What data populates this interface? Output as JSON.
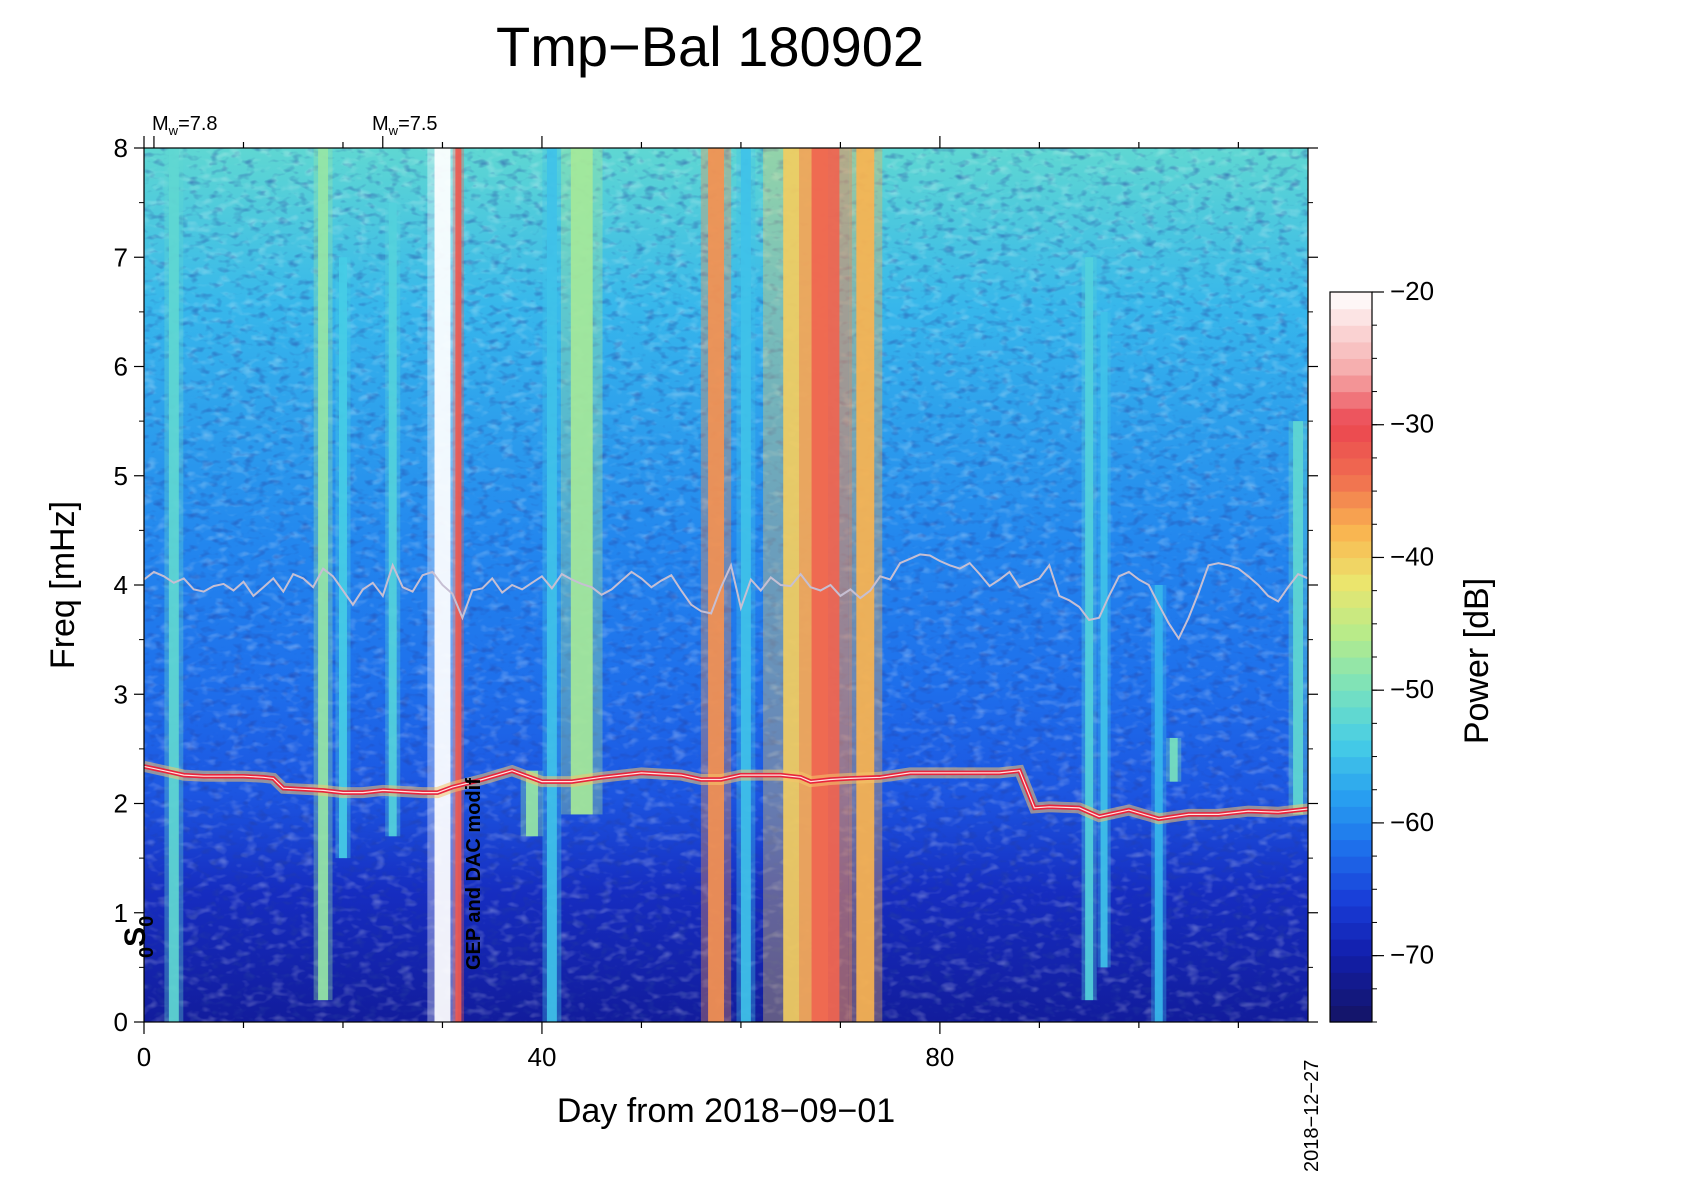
{
  "title": "Tmp−Bal 180902",
  "chart_data": {
    "type": "heatmap",
    "title": "Tmp−Bal 180902",
    "xlabel": "Day from 2018−09−01",
    "ylabel": "Freq [mHz]",
    "xlim": [
      0,
      117
    ],
    "ylim": [
      0,
      8
    ],
    "x_ticks": [
      "0",
      "40",
      "80"
    ],
    "x_tick_values": [
      0,
      40,
      80
    ],
    "x_end_label": "2018−12−27",
    "y_ticks": [
      "0",
      "1",
      "2",
      "3",
      "4",
      "5",
      "6",
      "7",
      "8"
    ],
    "y_tick_values": [
      0,
      1,
      2,
      3,
      4,
      5,
      6,
      7,
      8
    ],
    "colorbar": {
      "label": "Power [dB]",
      "range": [
        -75,
        -20
      ],
      "ticks": [
        "−20",
        "−30",
        "−40",
        "−50",
        "−60",
        "−70"
      ],
      "tick_values": [
        -20,
        -30,
        -40,
        -50,
        -60,
        -70
      ]
    },
    "events": [
      {
        "day": 1,
        "label_main": "M",
        "label_sub": "w",
        "label_rest": "=7.8"
      },
      {
        "day": 24,
        "label_main": "M",
        "label_sub": "w",
        "label_rest": "=7.5"
      }
    ],
    "annotations": {
      "mode": {
        "pre": "0",
        "main": "S",
        "post": "0",
        "freq_mHz": 0.814
      },
      "note": {
        "text": "GEP and DAC modif",
        "day": 33
      }
    },
    "strips": [
      {
        "day": 3,
        "width_days": 1.0,
        "fmin": 0.0,
        "fmax": 8.0,
        "level": -52
      },
      {
        "day": 18,
        "width_days": 1.0,
        "fmin": 0.2,
        "fmax": 8.0,
        "level": -48
      },
      {
        "day": 20,
        "width_days": 0.8,
        "fmin": 1.5,
        "fmax": 7.0,
        "level": -54
      },
      {
        "day": 25,
        "width_days": 0.8,
        "fmin": 1.7,
        "fmax": 7.5,
        "level": -53
      },
      {
        "day": 30,
        "width_days": 1.6,
        "fmin": 0.0,
        "fmax": 8.0,
        "level": -20
      },
      {
        "day": 31.6,
        "width_days": 0.6,
        "fmin": 0.0,
        "fmax": 8.0,
        "level": -32
      },
      {
        "day": 39,
        "width_days": 1.2,
        "fmin": 1.7,
        "fmax": 2.3,
        "level": -48
      },
      {
        "day": 41,
        "width_days": 1.0,
        "fmin": 0.0,
        "fmax": 8.0,
        "level": -55
      },
      {
        "day": 44,
        "width_days": 2.2,
        "fmin": 1.9,
        "fmax": 8.0,
        "level": -47
      },
      {
        "day": 57.5,
        "width_days": 1.6,
        "fmin": 0.0,
        "fmax": 8.0,
        "level": -36
      },
      {
        "day": 60.5,
        "width_days": 1.0,
        "fmin": 0.0,
        "fmax": 8.0,
        "level": -55
      },
      {
        "day": 66.5,
        "width_days": 4.5,
        "fmin": 0.0,
        "fmax": 8.0,
        "level": -40
      },
      {
        "day": 68.5,
        "width_days": 2.8,
        "fmin": 0.0,
        "fmax": 8.0,
        "level": -33
      },
      {
        "day": 72.5,
        "width_days": 1.8,
        "fmin": 0.0,
        "fmax": 8.0,
        "level": -38
      },
      {
        "day": 95,
        "width_days": 0.8,
        "fmin": 0.2,
        "fmax": 7.0,
        "level": -53
      },
      {
        "day": 96.5,
        "width_days": 0.7,
        "fmin": 0.5,
        "fmax": 6.5,
        "level": -55
      },
      {
        "day": 102,
        "width_days": 0.8,
        "fmin": 0.0,
        "fmax": 4.0,
        "level": -56
      },
      {
        "day": 103.5,
        "width_days": 0.8,
        "fmin": 2.2,
        "fmax": 2.6,
        "level": -50
      },
      {
        "day": 116,
        "width_days": 1.0,
        "fmin": 1.9,
        "fmax": 5.5,
        "level": -52
      }
    ],
    "series": [
      {
        "name": "red band",
        "color": "#e8243c",
        "x": [
          0,
          2,
          4,
          6,
          8,
          10,
          12,
          13,
          14,
          16,
          18,
          20,
          22,
          24,
          26,
          28,
          29.5,
          31,
          34,
          37,
          40,
          43,
          46,
          50,
          54,
          56,
          58,
          60,
          62,
          64,
          66,
          67,
          69,
          71,
          74,
          77,
          80,
          83,
          86,
          88,
          89.5,
          91,
          94,
          96,
          99,
          102,
          105,
          108,
          111,
          114,
          117
        ],
        "y": [
          2.34,
          2.3,
          2.26,
          2.25,
          2.25,
          2.25,
          2.24,
          2.23,
          2.14,
          2.13,
          2.12,
          2.1,
          2.1,
          2.12,
          2.11,
          2.1,
          2.1,
          2.15,
          2.22,
          2.3,
          2.2,
          2.2,
          2.24,
          2.28,
          2.26,
          2.22,
          2.22,
          2.26,
          2.26,
          2.26,
          2.24,
          2.2,
          2.22,
          2.23,
          2.24,
          2.28,
          2.28,
          2.28,
          2.28,
          2.3,
          1.96,
          1.97,
          1.96,
          1.88,
          1.94,
          1.86,
          1.9,
          1.9,
          1.93,
          1.92,
          1.95
        ]
      },
      {
        "name": "noise curve",
        "color": "#c6bfd3",
        "x": [
          0,
          1,
          2,
          3,
          4,
          5,
          6,
          7,
          8,
          9,
          10,
          11,
          12,
          13,
          14,
          15,
          16,
          17,
          18,
          19,
          20,
          21,
          22,
          23,
          24,
          25,
          26,
          27,
          28,
          29,
          30,
          31,
          32,
          33,
          34,
          35,
          36,
          37,
          38,
          39,
          40,
          41,
          42,
          43,
          44,
          45,
          46,
          47,
          48,
          49,
          50,
          51,
          52,
          53,
          54,
          55,
          56,
          57,
          58,
          59,
          60,
          61,
          62,
          63,
          64,
          65,
          66,
          67,
          68,
          69,
          70,
          71,
          72,
          73,
          74,
          75,
          76,
          77,
          78,
          79,
          80,
          81,
          82,
          83,
          84,
          85,
          86,
          87,
          88,
          89,
          90,
          91,
          92,
          93,
          94,
          95,
          96,
          97,
          98,
          99,
          100,
          101,
          102,
          103,
          104,
          105,
          106,
          107,
          108,
          109,
          110,
          111,
          112,
          113,
          114,
          115,
          116,
          117
        ],
        "y": [
          4.05,
          4.12,
          4.08,
          4.02,
          4.06,
          3.96,
          3.94,
          3.99,
          4.01,
          3.95,
          4.03,
          3.9,
          3.98,
          4.06,
          3.94,
          4.1,
          4.06,
          3.98,
          4.15,
          4.08,
          3.95,
          3.82,
          3.96,
          4.02,
          3.9,
          4.18,
          3.98,
          3.94,
          4.09,
          4.12,
          4.0,
          3.92,
          3.7,
          3.95,
          3.97,
          4.06,
          3.93,
          4.0,
          3.96,
          4.02,
          4.08,
          3.97,
          4.1,
          4.05,
          4.01,
          3.98,
          3.91,
          3.96,
          4.04,
          4.12,
          4.06,
          3.98,
          4.04,
          4.09,
          3.95,
          3.82,
          3.76,
          3.74,
          3.98,
          4.18,
          3.79,
          4.05,
          3.95,
          4.07,
          4.0,
          3.99,
          4.1,
          3.98,
          3.95,
          4.0,
          3.9,
          3.96,
          3.88,
          3.95,
          4.08,
          4.05,
          4.2,
          4.24,
          4.28,
          4.27,
          4.22,
          4.18,
          4.15,
          4.2,
          4.1,
          3.99,
          4.05,
          4.12,
          3.98,
          4.02,
          4.06,
          4.18,
          3.9,
          3.86,
          3.8,
          3.68,
          3.7,
          3.9,
          4.08,
          4.12,
          4.05,
          4.0,
          3.82,
          3.65,
          3.51,
          3.7,
          3.93,
          4.18,
          4.2,
          4.18,
          4.15,
          4.08,
          4.0,
          3.9,
          3.85,
          3.98,
          4.1,
          4.06
        ]
      }
    ]
  }
}
